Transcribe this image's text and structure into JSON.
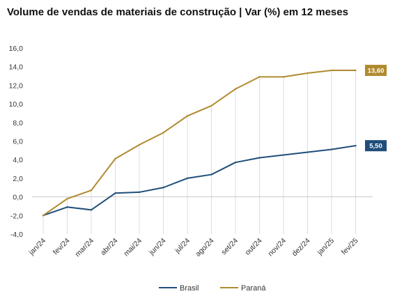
{
  "chart_data": {
    "type": "line",
    "title": "Volume de vendas de materiais de construção | Var (%) em 12 meses",
    "categories": [
      "jan/24",
      "fev/24",
      "mar/24",
      "abr/24",
      "mai/24",
      "jun/24",
      "jul/24",
      "ago/24",
      "set/24",
      "out/24",
      "nov/24",
      "dez/24",
      "jan/25",
      "fev/25"
    ],
    "ylim": [
      -4,
      16
    ],
    "yticks": [
      "-4,0",
      "-2,0",
      "0,0",
      "2,0",
      "4,0",
      "6,0",
      "8,0",
      "10,0",
      "12,0",
      "14,0",
      "16,0"
    ],
    "grid": "vertical lines under the upper series",
    "legend": "bottom",
    "series": [
      {
        "name": "Brasil",
        "color": "#1f4e79",
        "values": [
          -2.0,
          -1.1,
          -1.4,
          0.4,
          0.5,
          1.0,
          2.0,
          2.4,
          3.7,
          4.2,
          4.5,
          4.8,
          5.1,
          5.5
        ],
        "end_label": "5,50"
      },
      {
        "name": "Paraná",
        "color": "#b08a2e",
        "values": [
          -2.0,
          -0.2,
          0.7,
          4.1,
          5.6,
          6.9,
          8.7,
          9.8,
          11.6,
          12.9,
          12.9,
          13.3,
          13.6,
          13.6
        ],
        "end_label": "13,60"
      }
    ]
  }
}
